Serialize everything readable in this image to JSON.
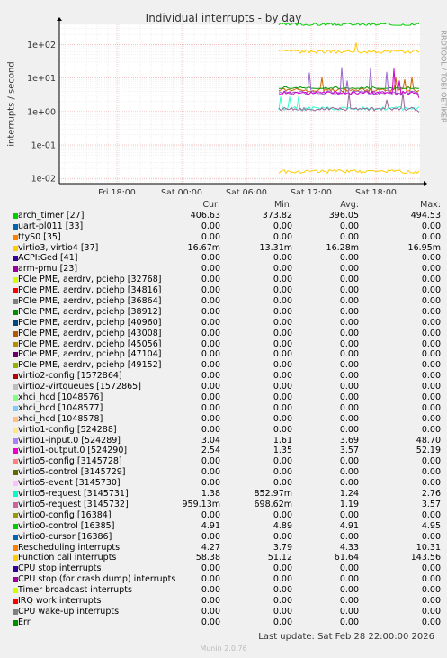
{
  "title": "Individual interrupts - by day",
  "ylabel": "interrupts / second",
  "side_label": "RRDTOOL / TOBI OETIKER",
  "last_update": "Last update: Sat Feb 28 22:00:00 2026",
  "footer": "Munin 2.0.76",
  "legend_headers": [
    "Cur:",
    "Min:",
    "Avg:",
    "Max:"
  ],
  "chart_data": {
    "type": "line",
    "title": "Individual interrupts - by day",
    "ylabel": "interrupts / second",
    "yscale": "log",
    "ylim": [
      0.007,
      400
    ],
    "y_ticks": [
      "1e-02",
      "1e-01",
      "1e+00",
      "1e+01",
      "1e+02"
    ],
    "x_ticks": [
      "Fri 18:00",
      "Sat 00:00",
      "Sat 06:00",
      "Sat 12:00",
      "Sat 18:00"
    ],
    "grid": true,
    "series": [
      {
        "name": "arch_timer [27]",
        "color": "#00cc00",
        "values": [
          406.63,
          373.82,
          396.05,
          494.53
        ]
      },
      {
        "name": "virtio3, virtio4 [37]",
        "color": "#ffcc00",
        "values": [
          0.01667,
          0.01331,
          0.01628,
          0.01695
        ]
      },
      {
        "name": "Function call interrupts",
        "color": "#ffcc00",
        "values": [
          58.38,
          51.12,
          61.64,
          143.56
        ]
      },
      {
        "name": "Rescheduling interrupts",
        "color": "#cc6600",
        "values": [
          4.27,
          3.79,
          4.33,
          10.31
        ]
      },
      {
        "name": "virtio0-control [16385]",
        "color": "#009900",
        "values": [
          4.91,
          4.89,
          4.91,
          4.95
        ]
      },
      {
        "name": "virtio1-input.0 [524289]",
        "color": "#9966cc",
        "values": [
          3.04,
          1.61,
          3.69,
          48.7
        ]
      },
      {
        "name": "virtio1-output.0 [524290]",
        "color": "#cc00cc",
        "values": [
          2.54,
          1.35,
          3.57,
          52.19
        ]
      },
      {
        "name": "virtio5-request [3145731]",
        "color": "#33ffcc",
        "values": [
          1.38,
          0.85297,
          1.24,
          2.76
        ]
      },
      {
        "name": "virtio5-request [3145732]",
        "color": "#996699",
        "values": [
          0.95913,
          0.69862,
          1.19,
          3.57
        ]
      }
    ]
  },
  "legend": [
    {
      "name": "arch_timer [27]",
      "color": "#00cc00",
      "cur": "406.63",
      "min": "373.82",
      "avg": "396.05",
      "max": "494.53"
    },
    {
      "name": "uart-pl011 [33]",
      "color": "#0066b3",
      "cur": "0.00",
      "min": "0.00",
      "avg": "0.00",
      "max": "0.00"
    },
    {
      "name": "ttyS0 [35]",
      "color": "#ff8000",
      "cur": "0.00",
      "min": "0.00",
      "avg": "0.00",
      "max": "0.00"
    },
    {
      "name": "virtio3, virtio4 [37]",
      "color": "#ffcc00",
      "cur": "16.67m",
      "min": "13.31m",
      "avg": "16.28m",
      "max": "16.95m"
    },
    {
      "name": "ACPI:Ged [41]",
      "color": "#330099",
      "cur": "0.00",
      "min": "0.00",
      "avg": "0.00",
      "max": "0.00"
    },
    {
      "name": "arm-pmu [23]",
      "color": "#990099",
      "cur": "0.00",
      "min": "0.00",
      "avg": "0.00",
      "max": "0.00"
    },
    {
      "name": "PCIe PME, aerdrv, pciehp [32768]",
      "color": "#ccff00",
      "cur": "0.00",
      "min": "0.00",
      "avg": "0.00",
      "max": "0.00"
    },
    {
      "name": "PCIe PME, aerdrv, pciehp [34816]",
      "color": "#ff0000",
      "cur": "0.00",
      "min": "0.00",
      "avg": "0.00",
      "max": "0.00"
    },
    {
      "name": "PCIe PME, aerdrv, pciehp [36864]",
      "color": "#808080",
      "cur": "0.00",
      "min": "0.00",
      "avg": "0.00",
      "max": "0.00"
    },
    {
      "name": "PCIe PME, aerdrv, pciehp [38912]",
      "color": "#008f00",
      "cur": "0.00",
      "min": "0.00",
      "avg": "0.00",
      "max": "0.00"
    },
    {
      "name": "PCIe PME, aerdrv, pciehp [40960]",
      "color": "#00487d",
      "cur": "0.00",
      "min": "0.00",
      "avg": "0.00",
      "max": "0.00"
    },
    {
      "name": "PCIe PME, aerdrv, pciehp [43008]",
      "color": "#b35a00",
      "cur": "0.00",
      "min": "0.00",
      "avg": "0.00",
      "max": "0.00"
    },
    {
      "name": "PCIe PME, aerdrv, pciehp [45056]",
      "color": "#b38f00",
      "cur": "0.00",
      "min": "0.00",
      "avg": "0.00",
      "max": "0.00"
    },
    {
      "name": "PCIe PME, aerdrv, pciehp [47104]",
      "color": "#6b006b",
      "cur": "0.00",
      "min": "0.00",
      "avg": "0.00",
      "max": "0.00"
    },
    {
      "name": "PCIe PME, aerdrv, pciehp [49152]",
      "color": "#8fb300",
      "cur": "0.00",
      "min": "0.00",
      "avg": "0.00",
      "max": "0.00"
    },
    {
      "name": "virtio2-config [1572864]",
      "color": "#b30000",
      "cur": "0.00",
      "min": "0.00",
      "avg": "0.00",
      "max": "0.00"
    },
    {
      "name": "virtio2-virtqueues [1572865]",
      "color": "#bebebe",
      "cur": "0.00",
      "min": "0.00",
      "avg": "0.00",
      "max": "0.00"
    },
    {
      "name": "xhci_hcd [1048576]",
      "color": "#80ff80",
      "cur": "0.00",
      "min": "0.00",
      "avg": "0.00",
      "max": "0.00"
    },
    {
      "name": "xhci_hcd [1048577]",
      "color": "#80c9ff",
      "cur": "0.00",
      "min": "0.00",
      "avg": "0.00",
      "max": "0.00"
    },
    {
      "name": "xhci_hcd [1048578]",
      "color": "#ffc080",
      "cur": "0.00",
      "min": "0.00",
      "avg": "0.00",
      "max": "0.00"
    },
    {
      "name": "virtio1-config [524288]",
      "color": "#ffe680",
      "cur": "0.00",
      "min": "0.00",
      "avg": "0.00",
      "max": "0.00"
    },
    {
      "name": "virtio1-input.0 [524289]",
      "color": "#aa80ff",
      "cur": "3.04",
      "min": "1.61",
      "avg": "3.69",
      "max": "48.70"
    },
    {
      "name": "virtio1-output.0 [524290]",
      "color": "#ee00cc",
      "cur": "2.54",
      "min": "1.35",
      "avg": "3.57",
      "max": "52.19"
    },
    {
      "name": "virtio5-config [3145728]",
      "color": "#ff8080",
      "cur": "0.00",
      "min": "0.00",
      "avg": "0.00",
      "max": "0.00"
    },
    {
      "name": "virtio5-control [3145729]",
      "color": "#666600",
      "cur": "0.00",
      "min": "0.00",
      "avg": "0.00",
      "max": "0.00"
    },
    {
      "name": "virtio5-event [3145730]",
      "color": "#ffbfff",
      "cur": "0.00",
      "min": "0.00",
      "avg": "0.00",
      "max": "0.00"
    },
    {
      "name": "virtio5-request [3145731]",
      "color": "#00ffcc",
      "cur": "1.38",
      "min": "852.97m",
      "avg": "1.24",
      "max": "2.76"
    },
    {
      "name": "virtio5-request [3145732]",
      "color": "#cc6699",
      "cur": "959.13m",
      "min": "698.62m",
      "avg": "1.19",
      "max": "3.57"
    },
    {
      "name": "virtio0-config [16384]",
      "color": "#999900",
      "cur": "0.00",
      "min": "0.00",
      "avg": "0.00",
      "max": "0.00"
    },
    {
      "name": "virtio0-control [16385]",
      "color": "#00cc00",
      "cur": "4.91",
      "min": "4.89",
      "avg": "4.91",
      "max": "4.95"
    },
    {
      "name": "virtio0-cursor [16386]",
      "color": "#0066b3",
      "cur": "0.00",
      "min": "0.00",
      "avg": "0.00",
      "max": "0.00"
    },
    {
      "name": "Rescheduling interrupts",
      "color": "#ff8000",
      "cur": "4.27",
      "min": "3.79",
      "avg": "4.33",
      "max": "10.31"
    },
    {
      "name": "Function call interrupts",
      "color": "#ffcc00",
      "cur": "58.38",
      "min": "51.12",
      "avg": "61.64",
      "max": "143.56"
    },
    {
      "name": "CPU stop interrupts",
      "color": "#330099",
      "cur": "0.00",
      "min": "0.00",
      "avg": "0.00",
      "max": "0.00"
    },
    {
      "name": "CPU stop (for crash dump) interrupts",
      "color": "#990099",
      "cur": "0.00",
      "min": "0.00",
      "avg": "0.00",
      "max": "0.00"
    },
    {
      "name": "Timer broadcast interrupts",
      "color": "#ccff00",
      "cur": "0.00",
      "min": "0.00",
      "avg": "0.00",
      "max": "0.00"
    },
    {
      "name": "IRQ work interrupts",
      "color": "#ff0000",
      "cur": "0.00",
      "min": "0.00",
      "avg": "0.00",
      "max": "0.00"
    },
    {
      "name": "CPU wake-up interrupts",
      "color": "#808080",
      "cur": "0.00",
      "min": "0.00",
      "avg": "0.00",
      "max": "0.00"
    },
    {
      "name": "Err",
      "color": "#008f00",
      "cur": "0.00",
      "min": "0.00",
      "avg": "0.00",
      "max": "0.00"
    }
  ]
}
